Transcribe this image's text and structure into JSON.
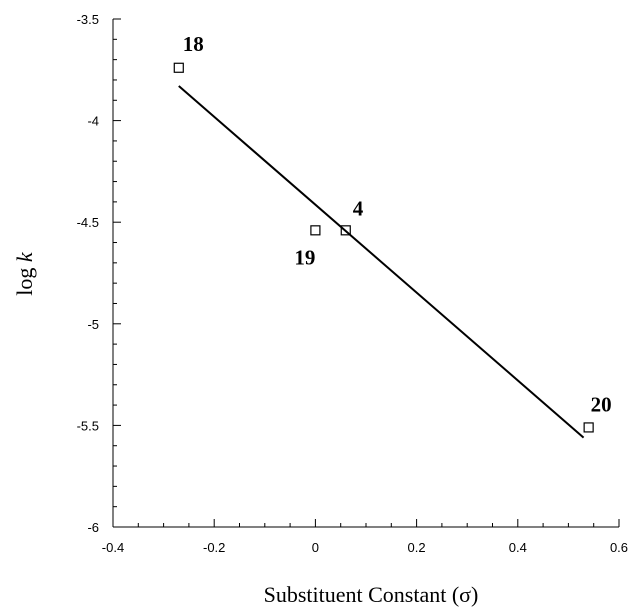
{
  "chart_data": {
    "type": "scatter",
    "title": "",
    "xlabel": "Substituent Constant (σ)",
    "ylabel_parts": [
      "log ",
      "k"
    ],
    "xlim": [
      -0.4,
      0.6
    ],
    "ylim": [
      -6,
      -3.5
    ],
    "x_ticks": [
      -0.4,
      -0.2,
      0,
      0.2,
      0.4,
      0.6
    ],
    "x_tick_labels": [
      "-0.4",
      "-0.2",
      "0",
      "0.2",
      "0.4",
      "0.6"
    ],
    "y_ticks": [
      -6,
      -5.5,
      -5,
      -4.5,
      -4,
      -3.5
    ],
    "y_tick_labels": [
      "-6",
      "-5.5",
      "-5",
      "-4.5",
      "-4",
      "-3.5"
    ],
    "grid": false,
    "legend": "none",
    "series": [
      {
        "type": "scatter",
        "marker": "open-square",
        "points": [
          {
            "label": "18",
            "x": -0.27,
            "y": -3.74
          },
          {
            "label": "19",
            "x": 0.0,
            "y": -4.54
          },
          {
            "label": "4",
            "x": 0.06,
            "y": -4.54
          },
          {
            "label": "20",
            "x": 0.54,
            "y": -5.51
          }
        ]
      },
      {
        "type": "line",
        "name": "",
        "x": [
          -0.27,
          0.53
        ],
        "y": [
          -3.83,
          -5.56
        ]
      }
    ],
    "colors": {
      "marks": "#000000",
      "background": "#ffffff"
    }
  }
}
